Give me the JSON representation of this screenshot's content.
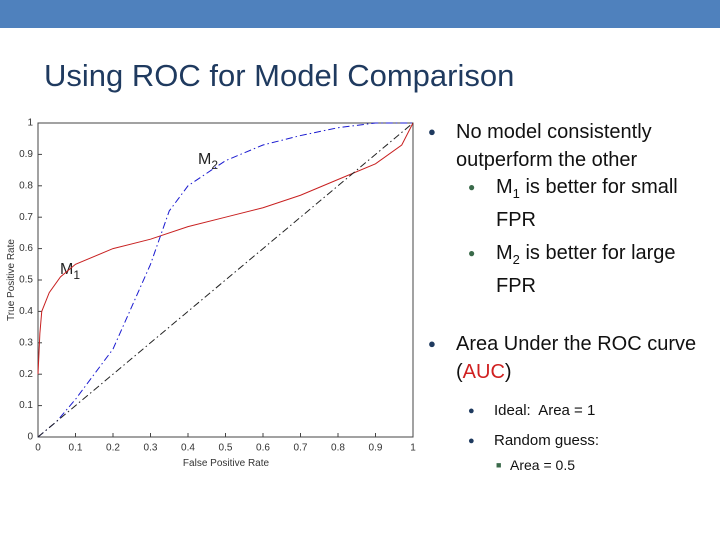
{
  "title": "Using ROC for Model Comparison",
  "bullets": [
    {
      "text": "No model consistently outperform the other",
      "items": [
        {
          "lead": "M",
          "sub": "1",
          "text": "is better for small FPR"
        },
        {
          "lead": "M",
          "sub": "2",
          "text": "is better for large FPR"
        }
      ]
    },
    {
      "parts": [
        "Area Under the ROC curve (",
        "AUC",
        ")"
      ],
      "items": [
        {
          "text": "Ideal:  Area = 1"
        },
        {
          "text": "Random guess:",
          "items": [
            "Area = 0.5"
          ]
        }
      ]
    }
  ],
  "chart_data": {
    "type": "line",
    "xlabel": "False Positive Rate",
    "ylabel": "True Positive Rate",
    "xlim": [
      0,
      1
    ],
    "ylim": [
      0,
      1
    ],
    "xticks": [
      0,
      0.1,
      0.2,
      0.3,
      0.4,
      0.5,
      0.6,
      0.7,
      0.8,
      0.9,
      1
    ],
    "yticks": [
      0,
      0.1,
      0.2,
      0.3,
      0.4,
      0.5,
      0.6,
      0.7,
      0.8,
      0.9,
      1
    ],
    "series": [
      {
        "label": {
          "text": "M",
          "sub": "1"
        },
        "color": "#c82020",
        "dash": "solid",
        "x": [
          0,
          0.005,
          0.01,
          0.03,
          0.06,
          0.1,
          0.2,
          0.3,
          0.4,
          0.5,
          0.6,
          0.7,
          0.8,
          0.9,
          0.97,
          1
        ],
        "values": [
          0.2,
          0.33,
          0.4,
          0.46,
          0.51,
          0.55,
          0.6,
          0.63,
          0.67,
          0.7,
          0.73,
          0.77,
          0.82,
          0.87,
          0.93,
          1
        ]
      },
      {
        "label": {
          "text": "M",
          "sub": "2"
        },
        "color": "#1a1ad0",
        "dash": "dashdot",
        "x": [
          0,
          0.05,
          0.1,
          0.2,
          0.3,
          0.35,
          0.4,
          0.5,
          0.6,
          0.7,
          0.8,
          0.9,
          1
        ],
        "values": [
          0,
          0.05,
          0.12,
          0.28,
          0.55,
          0.72,
          0.8,
          0.88,
          0.93,
          0.96,
          0.985,
          1,
          1
        ]
      },
      {
        "color": "#222222",
        "dash": "dashdot",
        "x": [
          0,
          1
        ],
        "values": [
          0,
          1
        ]
      }
    ]
  }
}
